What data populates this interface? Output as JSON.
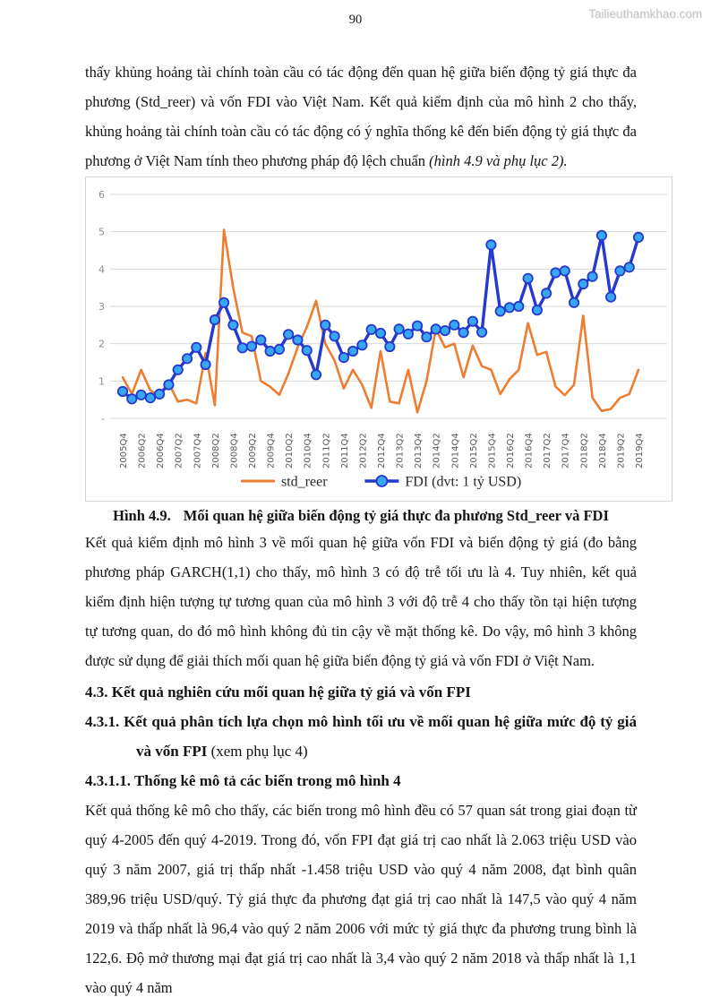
{
  "page": {
    "number": "90",
    "watermark": "Tailieuthamkhao.com"
  },
  "paragraphs": {
    "p1_main": "thấy khủng hoảng tài chính toàn cầu có tác động đến quan hệ giữa biến động tỷ giá thực đa phương (Std_reer) và vốn FDI vào Việt Nam. Kết quả kiểm định của mô hình 2 cho thấy, khủng hoảng tài chính toàn cầu có tác động có ý nghĩa thống kê đến biến động tỷ giá thực đa phương ở Việt Nam tính theo phương pháp độ lệch chuẩn ",
    "p1_italic": "(hình 4.9 và phụ lục 2).",
    "p2": "Kết quả kiểm định mô hình 3 về mối quan hệ giữa vốn FDI và biến động tỷ giá (đo bằng phương pháp GARCH(1,1) cho thấy, mô hình 3 có độ trễ tối ưu là 4. Tuy nhiên, kết quả kiểm định hiện tượng tự tương quan của mô hình 3 với độ trễ 4 cho thấy tồn tại hiện tượng tự tương quan, do đó mô hình không đủ tin cậy về mặt thống kê. Do vậy, mô hình 3 không được sử dụng để giải thích mối quan hệ giữa biến động tỷ giá và vốn FDI ở Việt Nam.",
    "p3": "Kết quả thống kê mô cho thấy, các biến trong mô hình đều có 57 quan sát trong giai đoạn từ quý 4-2005 đến quý 4-2019. Trong đó, vốn FPI đạt giá trị cao nhất là 2.063 triệu USD vào quý 3 năm 2007, giá trị thấp nhất -1.458 triệu USD vào quý 4 năm 2008, đạt bình quân 389,96 triệu USD/quý. Tỷ giá thực đa phương đạt giá trị cao nhất là 147,5 vào quý 4 năm 2019 và thấp nhất là 96,4 vào quý 2 năm 2006 với mức tỷ giá thực đa phương trung bình là 122,6. Độ mở thương mại đạt giá trị cao nhất là 3,4 vào quý 2 năm 2018 và thấp nhất là 1,1 vào quý 4 năm"
  },
  "figure": {
    "caption_label": "Hình 4.9.",
    "caption_text": "Mối quan hệ giữa biến động tỷ giá thực đa phương Std_reer và FDI"
  },
  "headings": {
    "h43": "4.3. Kết quả nghiên cứu mối quan hệ giữa tỷ giá và vốn FPI",
    "h431_bold": "4.3.1. Kết quả phân tích lựa chọn mô hình tối ưu về mối quan hệ giữa mức độ tỷ giá và vốn FPI",
    "h431_normal": " (xem phụ lục 4)",
    "h4311": "4.3.1.1. Thống kê mô tả các biến trong mô hình 4"
  },
  "chart_data": {
    "type": "line",
    "title": "",
    "grid": true,
    "legend_position": "bottom",
    "x_axis": {
      "tick_label_every": 2,
      "labels_rotated_90": true
    },
    "y_axis": {
      "min": 0,
      "max": 6,
      "tick_interval": 1,
      "zero_label": "-",
      "tick_labels": [
        "-",
        "1",
        "2",
        "3",
        "4",
        "5",
        "6"
      ]
    },
    "categories": [
      "2005Q4",
      "2006Q1",
      "2006Q2",
      "2006Q3",
      "2006Q4",
      "2007Q1",
      "2007Q2",
      "2007Q3",
      "2007Q4",
      "2008Q1",
      "2008Q2",
      "2008Q3",
      "2008Q4",
      "2009Q1",
      "2009Q2",
      "2009Q3",
      "2009Q4",
      "2010Q1",
      "2010Q2",
      "2010Q3",
      "2010Q4",
      "2011Q1",
      "2011Q2",
      "2011Q3",
      "2011Q4",
      "2012Q1",
      "2012Q2",
      "2012Q3",
      "2012Q4",
      "2013Q1",
      "2013Q2",
      "2013Q3",
      "2013Q4",
      "2014Q1",
      "2014Q2",
      "2014Q3",
      "2014Q4",
      "2015Q1",
      "2015Q2",
      "2015Q3",
      "2015Q4",
      "2016Q1",
      "2016Q2",
      "2016Q3",
      "2016Q4",
      "2017Q1",
      "2017Q2",
      "2017Q3",
      "2017Q4",
      "2018Q1",
      "2018Q2",
      "2018Q3",
      "2018Q4",
      "2019Q1",
      "2019Q2",
      "2019Q3",
      "2019Q4"
    ],
    "series": [
      {
        "name": "std_reer",
        "color": "#ED7D31",
        "marker": false,
        "values": [
          1.1,
          0.65,
          1.3,
          0.75,
          0.6,
          0.95,
          0.45,
          0.5,
          0.4,
          1.75,
          0.35,
          5.05,
          3.5,
          2.3,
          2.2,
          1.0,
          0.85,
          0.63,
          1.2,
          1.9,
          2.45,
          3.15,
          2.0,
          1.55,
          0.8,
          1.3,
          0.9,
          0.28,
          1.8,
          0.45,
          0.4,
          1.3,
          0.16,
          1.0,
          2.4,
          1.9,
          2.0,
          1.1,
          1.95,
          1.4,
          1.3,
          0.65,
          1.05,
          1.3,
          2.55,
          1.7,
          1.78,
          0.85,
          0.62,
          0.9,
          2.75,
          0.55,
          0.2,
          0.25,
          0.55,
          0.65,
          1.3
        ]
      },
      {
        "name": "FDI (dvt: 1 tỷ USD)",
        "color": "#2639CE",
        "marker": true,
        "marker_fill": "#38A6F0",
        "values": [
          0.72,
          0.52,
          0.63,
          0.55,
          0.65,
          0.9,
          1.3,
          1.6,
          1.9,
          1.44,
          2.64,
          3.1,
          2.5,
          1.89,
          1.93,
          2.1,
          1.8,
          1.85,
          2.25,
          2.1,
          1.82,
          1.17,
          2.5,
          2.2,
          1.63,
          1.8,
          1.96,
          2.38,
          2.28,
          1.92,
          2.39,
          2.26,
          2.48,
          2.18,
          2.39,
          2.35,
          2.5,
          2.3,
          2.6,
          2.31,
          4.65,
          2.87,
          2.97,
          3.0,
          3.75,
          2.9,
          3.35,
          3.9,
          3.95,
          3.1,
          3.6,
          3.8,
          4.9,
          3.25,
          3.95,
          4.05,
          4.85
        ]
      }
    ],
    "axis_label_colors": {
      "y": "#8c8c8c",
      "x": "#595959"
    },
    "gridline_color": "#d9d9d9"
  }
}
